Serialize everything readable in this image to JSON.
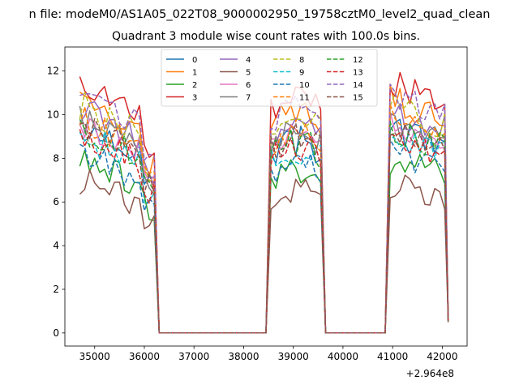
{
  "figure": {
    "suptitle": "n file: modeM0/AS1A05_022T08_9000002950_19758cztM0_level2_quad_clean",
    "title": "Quadrant 3 module wise count rates with 100.0s bins.",
    "offset_text": "+2.964e8"
  },
  "chart_data": {
    "type": "line",
    "title": "Quadrant 3 module wise count rates with 100.0s bins.",
    "xlabel": "",
    "ylabel": "",
    "x_offset": 296400000,
    "xlim": [
      34400,
      42500
    ],
    "ylim": [
      -0.6,
      13.1
    ],
    "x_ticks": [
      35000,
      36000,
      37000,
      38000,
      39000,
      40000,
      41000,
      42000
    ],
    "y_ticks": [
      0,
      2,
      4,
      6,
      8,
      10,
      12
    ],
    "grid": false,
    "legend": {
      "placement": "upper-center",
      "columns": 4
    },
    "segments": [
      [
        34700,
        36200
      ],
      [
        38550,
        39550
      ],
      [
        40950,
        42100
      ]
    ],
    "gap_ranges": [
      [
        36300,
        38400
      ],
      [
        39650,
        40800
      ]
    ],
    "series": [
      {
        "name": "0",
        "color": "#1f77b4",
        "dash": "solid",
        "level": 9.0
      },
      {
        "name": "1",
        "color": "#ff7f0e",
        "dash": "solid",
        "level": 10.3
      },
      {
        "name": "2",
        "color": "#2ca02c",
        "dash": "solid",
        "level": 7.6
      },
      {
        "name": "3",
        "color": "#d62728",
        "dash": "solid",
        "level": 11.0
      },
      {
        "name": "4",
        "color": "#9467bd",
        "dash": "solid",
        "level": 9.8
      },
      {
        "name": "5",
        "color": "#8c564b",
        "dash": "solid",
        "level": 6.6
      },
      {
        "name": "6",
        "color": "#e377c2",
        "dash": "solid",
        "level": 9.2
      },
      {
        "name": "7",
        "color": "#7f7f7f",
        "dash": "solid",
        "level": 9.3
      },
      {
        "name": "8",
        "color": "#bcbd22",
        "dash": "dashed",
        "level": 10.0
      },
      {
        "name": "9",
        "color": "#17becf",
        "dash": "dashed",
        "level": 8.6
      },
      {
        "name": "10",
        "color": "#1f77b4",
        "dash": "dashed",
        "level": 7.9
      },
      {
        "name": "11",
        "color": "#ff7f0e",
        "dash": "dashed",
        "level": 9.4
      },
      {
        "name": "12",
        "color": "#2ca02c",
        "dash": "dashed",
        "level": 8.9
      },
      {
        "name": "13",
        "color": "#d62728",
        "dash": "dashed",
        "level": 8.7
      },
      {
        "name": "14",
        "color": "#9467bd",
        "dash": "dashed",
        "level": 10.5
      },
      {
        "name": "15",
        "color": "#8c564b",
        "dash": "dashed",
        "level": 9.1
      }
    ]
  }
}
